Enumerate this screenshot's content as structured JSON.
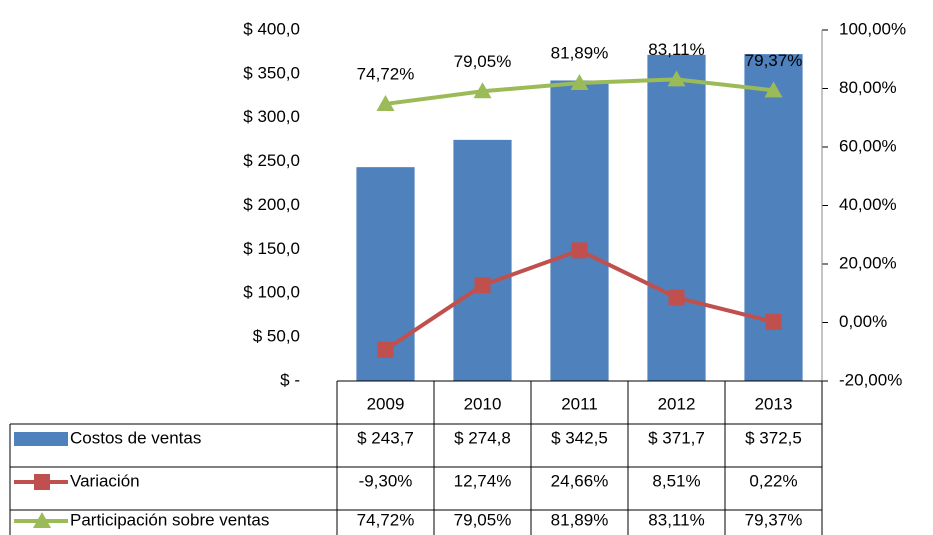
{
  "chart_data": {
    "type": "bar",
    "categories": [
      "2009",
      "2010",
      "2011",
      "2012",
      "2013"
    ],
    "series": [
      {
        "name": "Costos de ventas",
        "type": "bar",
        "color": "#4f81bd",
        "values": [
          243.7,
          274.8,
          342.5,
          371.7,
          372.5
        ],
        "value_labels": [
          "$ 243,7",
          "$ 274,8",
          "$ 342,5",
          "$ 371,7",
          "$ 372,5"
        ]
      },
      {
        "name": "Variación",
        "type": "line",
        "axis": "y2",
        "color": "#c0504d",
        "values": [
          -9.3,
          12.74,
          24.66,
          8.51,
          0.22
        ],
        "value_labels": [
          "-9,30%",
          "12,74%",
          "24,66%",
          "8,51%",
          "0,22%"
        ]
      },
      {
        "name": "Participación sobre ventas",
        "type": "line",
        "axis": "y2",
        "color": "#9bbb59",
        "values": [
          74.72,
          79.05,
          81.89,
          83.11,
          79.37
        ],
        "value_labels": [
          "74,72%",
          "79,05%",
          "81,89%",
          "83,11%",
          "79,37%"
        ]
      }
    ],
    "ylim": [
      0,
      400
    ],
    "yticks": [
      {
        "value": 0,
        "label": "$ -"
      },
      {
        "value": 50,
        "label": "$ 50,0"
      },
      {
        "value": 100,
        "label": "$ 100,0"
      },
      {
        "value": 150,
        "label": "$ 150,0"
      },
      {
        "value": 200,
        "label": "$ 200,0"
      },
      {
        "value": 250,
        "label": "$ 250,0"
      },
      {
        "value": 300,
        "label": "$ 300,0"
      },
      {
        "value": 350,
        "label": "$ 350,0"
      },
      {
        "value": 400,
        "label": "$ 400,0"
      }
    ],
    "y2lim": [
      -20,
      100
    ],
    "y2ticks": [
      {
        "value": -20,
        "label": "-20,00%"
      },
      {
        "value": 0,
        "label": "0,00%"
      },
      {
        "value": 20,
        "label": "20,00%"
      },
      {
        "value": 40,
        "label": "40,00%"
      },
      {
        "value": 60,
        "label": "60,00%"
      },
      {
        "value": 80,
        "label": "80,00%"
      },
      {
        "value": 100,
        "label": "100,00%"
      }
    ],
    "data_table": true
  }
}
